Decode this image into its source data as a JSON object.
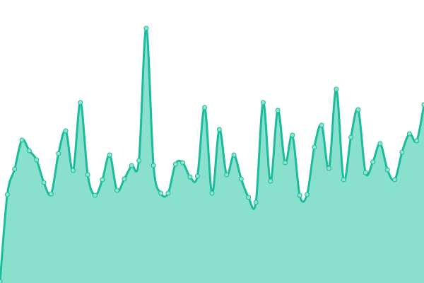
{
  "chart_data": {
    "type": "area",
    "title": "",
    "xlabel": "",
    "ylabel": "",
    "grid": false,
    "legend": "none",
    "ylim": [
      0,
      400
    ],
    "x": [
      0,
      1,
      2,
      3,
      4,
      5,
      6,
      7,
      8,
      9,
      10,
      11,
      12,
      13,
      14,
      15,
      16,
      17,
      18,
      19,
      20,
      21,
      22,
      23,
      24,
      25,
      26,
      27,
      28,
      29,
      30,
      31,
      32,
      33,
      34,
      35,
      36,
      37,
      38,
      39,
      40,
      41,
      42,
      43,
      44,
      45,
      46,
      47,
      48,
      49,
      50,
      51,
      52,
      53,
      54,
      55,
      56,
      57,
      58
    ],
    "series": [
      {
        "values": [
          2,
          125,
          161,
          202,
          187,
          174,
          142,
          126,
          183,
          215,
          159,
          255,
          153,
          124,
          146,
          181,
          131,
          147,
          166,
          173,
          360,
          166,
          127,
          127,
          168,
          170,
          150,
          151,
          248,
          127,
          217,
          153,
          181,
          147,
          121,
          114,
          255,
          144,
          244,
          170,
          209,
          124,
          125,
          192,
          223,
          162,
          274,
          146,
          206,
          245,
          156,
          171,
          197,
          160,
          146,
          185,
          211,
          201,
          252
        ]
      }
    ],
    "colors": {
      "line": "#1abc9c",
      "fill": "#88e0cd",
      "marker": "#8fe3cf"
    }
  }
}
